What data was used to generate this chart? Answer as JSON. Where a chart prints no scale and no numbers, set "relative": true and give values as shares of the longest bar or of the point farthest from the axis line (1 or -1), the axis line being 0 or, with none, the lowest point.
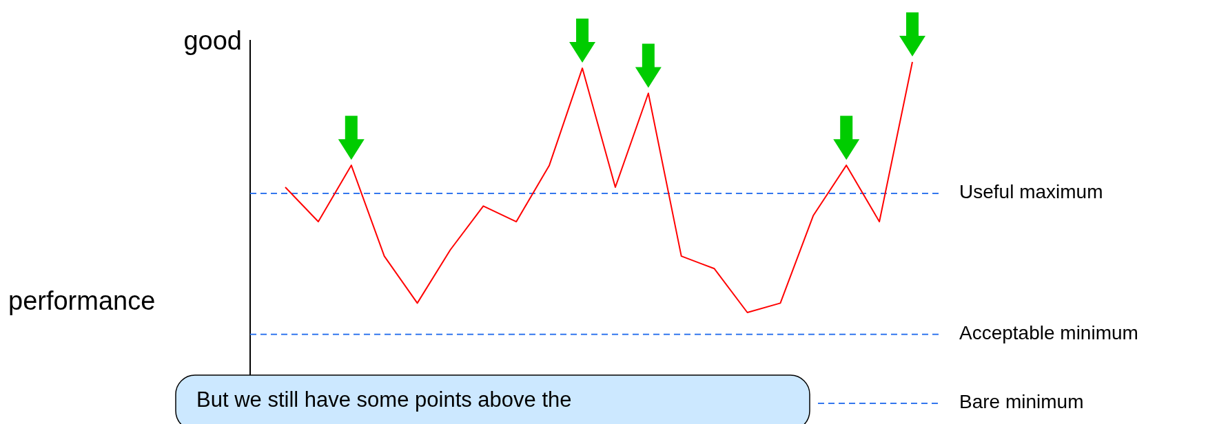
{
  "chart_data": {
    "type": "line",
    "relative": true,
    "ylabel": "performance",
    "categories": [
      null,
      null,
      null,
      null,
      null,
      null,
      null,
      null,
      null,
      null,
      null,
      null,
      null,
      null,
      null,
      null,
      null,
      null,
      null,
      null
    ],
    "series": [
      {
        "color": "#ff0000",
        "values": [
          0.6,
          0.49,
          0.67,
          0.38,
          0.23,
          0.4,
          0.54,
          0.49,
          0.67,
          0.98,
          0.6,
          0.9,
          0.38,
          0.34,
          0.2,
          0.23,
          0.51,
          0.67,
          0.49,
          1
        ]
      }
    ],
    "ref_lines": [
      {
        "axis": "y",
        "value": 0.58,
        "label": "Useful maximum",
        "color": "#3377ee",
        "line_style": "dashed"
      },
      {
        "axis": "y",
        "value": 0.13,
        "label": "Acceptable minimum",
        "color": "#3377ee",
        "line_style": "dashed"
      },
      {
        "axis": "y",
        "value": -0.09,
        "label": "Bare minimum",
        "color": "#3377ee",
        "line_style": "dashed"
      }
    ],
    "annotations": [
      "good",
      "But we still have some points above the"
    ]
  }
}
